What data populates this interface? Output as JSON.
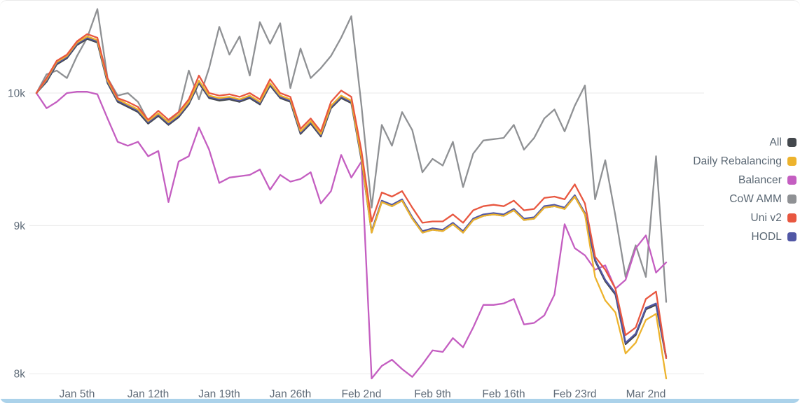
{
  "page": {
    "background": "#ffffff",
    "bottom_bar_color": "#abd2ea",
    "gridline_color": "#ededed",
    "axis_label_color": "#5f6b78",
    "legend_text_color": "#5a6773"
  },
  "chart_data": {
    "type": "line",
    "title": "",
    "y_scale": "log",
    "grid": "horizontal-only",
    "legend_position": "right",
    "n_points": 63,
    "x_ticks": [
      {
        "index": 4,
        "label": "Jan 5th"
      },
      {
        "index": 11,
        "label": "Jan 12th"
      },
      {
        "index": 18,
        "label": "Jan 19th"
      },
      {
        "index": 25,
        "label": "Jan 26th"
      },
      {
        "index": 32,
        "label": "Feb 2nd"
      },
      {
        "index": 39,
        "label": "Feb 9th"
      },
      {
        "index": 46,
        "label": "Feb 16th"
      },
      {
        "index": 53,
        "label": "Feb 23rd"
      },
      {
        "index": 60,
        "label": "Mar 2nd"
      }
    ],
    "y_ticks": [
      {
        "value": 8000,
        "label": "8k"
      },
      {
        "value": 9000,
        "label": "9k"
      },
      {
        "value": 10000,
        "label": "10k"
      }
    ],
    "ylim": [
      7900,
      10750
    ],
    "draw_order": [
      "CoW AMM",
      "Balancer",
      "All",
      "HODL",
      "Daily Rebalancing",
      "Uni v2"
    ],
    "series": [
      {
        "name": "All",
        "color": "#44484d",
        "values": [
          10000,
          10090,
          10230,
          10280,
          10390,
          10440,
          10410,
          10080,
          9930,
          9890,
          9850,
          9760,
          9820,
          9750,
          9810,
          9910,
          10080,
          9960,
          9940,
          9950,
          9930,
          9960,
          9910,
          10060,
          9960,
          9930,
          9680,
          9760,
          9660,
          9880,
          9960,
          9920,
          9480,
          8950,
          9170,
          9140,
          9180,
          9050,
          8950,
          8970,
          8960,
          9010,
          8950,
          9040,
          9070,
          9080,
          9070,
          9110,
          9040,
          9050,
          9130,
          9140,
          9120,
          9210,
          9080,
          8750,
          8610,
          8520,
          8190,
          8250,
          8420,
          8450,
          8100
        ]
      },
      {
        "name": "Daily Rebalancing",
        "color": "#edb32d",
        "values": [
          10000,
          10110,
          10250,
          10300,
          10410,
          10460,
          10430,
          10100,
          9950,
          9910,
          9870,
          9780,
          9840,
          9770,
          9830,
          9930,
          10100,
          9980,
          9960,
          9970,
          9950,
          9980,
          9930,
          10080,
          9980,
          9950,
          9700,
          9780,
          9680,
          9900,
          9980,
          9940,
          9500,
          8950,
          9170,
          9140,
          9180,
          9050,
          8950,
          8970,
          8960,
          9010,
          8950,
          9040,
          9070,
          9080,
          9070,
          9110,
          9040,
          9050,
          9130,
          9140,
          9120,
          9210,
          9080,
          8640,
          8480,
          8400,
          8130,
          8200,
          8350,
          8390,
          7970
        ]
      },
      {
        "name": "Balancer",
        "color": "#c45ec1",
        "values": [
          10000,
          9880,
          9930,
          10000,
          10010,
          10010,
          9990,
          9800,
          9620,
          9590,
          9620,
          9510,
          9550,
          9170,
          9470,
          9510,
          9730,
          9560,
          9310,
          9350,
          9360,
          9370,
          9410,
          9260,
          9370,
          9320,
          9340,
          9390,
          9160,
          9250,
          9520,
          9350,
          9470,
          7970,
          8050,
          8090,
          8030,
          7980,
          8060,
          8150,
          8140,
          8230,
          8170,
          8300,
          8450,
          8450,
          8460,
          8490,
          8320,
          8330,
          8380,
          8520,
          9010,
          8840,
          8790,
          8690,
          8720,
          8560,
          8620,
          8840,
          8930,
          8670,
          8740
        ]
      },
      {
        "name": "CoW AMM",
        "color": "#8f9194",
        "values": [
          10000,
          10150,
          10180,
          10120,
          10300,
          10450,
          10690,
          10120,
          9980,
          10000,
          9930,
          9780,
          9820,
          9780,
          9850,
          10180,
          9950,
          10200,
          10540,
          10310,
          10460,
          10140,
          10580,
          10400,
          10570,
          10040,
          10360,
          10120,
          10200,
          10300,
          10450,
          10630,
          9900,
          9130,
          9750,
          9590,
          9850,
          9710,
          9390,
          9490,
          9440,
          9620,
          9280,
          9530,
          9630,
          9640,
          9650,
          9750,
          9560,
          9650,
          9800,
          9870,
          9700,
          9900,
          10060,
          9190,
          9480,
          9070,
          8640,
          8860,
          8640,
          9510,
          8470
        ]
      },
      {
        "name": "Uni v2",
        "color": "#e85740",
        "values": [
          10000,
          10120,
          10260,
          10310,
          10420,
          10480,
          10450,
          10120,
          9960,
          9930,
          9890,
          9790,
          9860,
          9790,
          9850,
          9950,
          10140,
          10000,
          9980,
          9990,
          9970,
          10000,
          9950,
          10110,
          10000,
          9970,
          9720,
          9800,
          9700,
          9930,
          10020,
          9970,
          9550,
          9030,
          9240,
          9210,
          9250,
          9130,
          9020,
          9030,
          9030,
          9080,
          9020,
          9110,
          9140,
          9150,
          9140,
          9180,
          9110,
          9120,
          9200,
          9210,
          9190,
          9300,
          9160,
          8780,
          8690,
          8560,
          8250,
          8300,
          8490,
          8540,
          8100
        ]
      },
      {
        "name": "HODL",
        "color": "#5157a5",
        "values": [
          10000,
          10100,
          10240,
          10290,
          10400,
          10450,
          10420,
          10090,
          9940,
          9900,
          9860,
          9770,
          9830,
          9760,
          9820,
          9920,
          10090,
          9970,
          9950,
          9960,
          9940,
          9970,
          9920,
          10070,
          9970,
          9940,
          9690,
          9770,
          9670,
          9890,
          9970,
          9930,
          9490,
          8960,
          9180,
          9150,
          9190,
          9060,
          8960,
          8980,
          8970,
          9020,
          8960,
          9050,
          9080,
          9090,
          9080,
          9120,
          9050,
          9060,
          9140,
          9150,
          9130,
          9220,
          9090,
          8760,
          8620,
          8530,
          8200,
          8260,
          8430,
          8460,
          8110
        ]
      }
    ]
  }
}
